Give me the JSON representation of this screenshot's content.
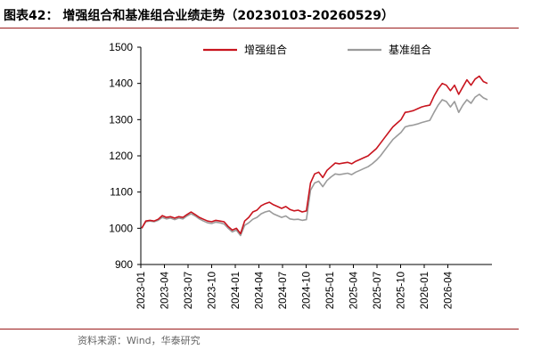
{
  "header": {
    "title": "图表42：  增强组合和基准组合业绩走势（20230103-20260529）"
  },
  "source": "资料来源：Wind，华泰研究",
  "colors": {
    "enhanced": "#c8141e",
    "benchmark": "#9b9b9b",
    "axis": "#000000",
    "rule": "#9b1b1b"
  },
  "chart_data": {
    "type": "line",
    "ylim": [
      900,
      1500
    ],
    "yticks": [
      900,
      1000,
      1100,
      1200,
      1300,
      1400,
      1500
    ],
    "xlabels": [
      "2023-01",
      "2023-04",
      "2023-07",
      "2023-10",
      "2024-01",
      "2024-04",
      "2024-07",
      "2024-10",
      "2025-01",
      "2025-04",
      "2025-07",
      "2025-10",
      "2026-01",
      "2026-04"
    ],
    "grid": false,
    "legend": "top",
    "series": [
      {
        "name": "增强组合",
        "color": "#c8141e",
        "values": [
          1000,
          1020,
          1022,
          1020,
          1025,
          1035,
          1030,
          1032,
          1028,
          1032,
          1030,
          1038,
          1045,
          1038,
          1030,
          1025,
          1020,
          1018,
          1022,
          1020,
          1018,
          1005,
          995,
          1000,
          985,
          1020,
          1030,
          1045,
          1050,
          1062,
          1068,
          1072,
          1065,
          1060,
          1055,
          1060,
          1052,
          1048,
          1050,
          1045,
          1048,
          1125,
          1150,
          1155,
          1140,
          1160,
          1170,
          1180,
          1178,
          1180,
          1182,
          1178,
          1185,
          1190,
          1195,
          1200,
          1210,
          1220,
          1235,
          1250,
          1265,
          1280,
          1290,
          1300,
          1320,
          1322,
          1325,
          1330,
          1335,
          1338,
          1340,
          1365,
          1385,
          1400,
          1395,
          1380,
          1395,
          1370,
          1390,
          1410,
          1395,
          1412,
          1420,
          1405,
          1400
        ]
      },
      {
        "name": "基准组合",
        "color": "#9b9b9b",
        "values": [
          1000,
          1018,
          1020,
          1018,
          1022,
          1030,
          1026,
          1028,
          1024,
          1028,
          1026,
          1034,
          1040,
          1034,
          1026,
          1020,
          1015,
          1013,
          1017,
          1015,
          1012,
          1000,
          990,
          995,
          980,
          1008,
          1015,
          1025,
          1030,
          1040,
          1045,
          1048,
          1040,
          1035,
          1030,
          1034,
          1026,
          1024,
          1025,
          1022,
          1024,
          1105,
          1125,
          1130,
          1115,
          1132,
          1142,
          1150,
          1148,
          1150,
          1152,
          1148,
          1155,
          1160,
          1165,
          1170,
          1178,
          1188,
          1200,
          1215,
          1230,
          1245,
          1255,
          1265,
          1280,
          1283,
          1285,
          1288,
          1292,
          1295,
          1298,
          1320,
          1340,
          1355,
          1350,
          1335,
          1350,
          1320,
          1340,
          1355,
          1345,
          1362,
          1370,
          1360,
          1355
        ]
      }
    ]
  }
}
